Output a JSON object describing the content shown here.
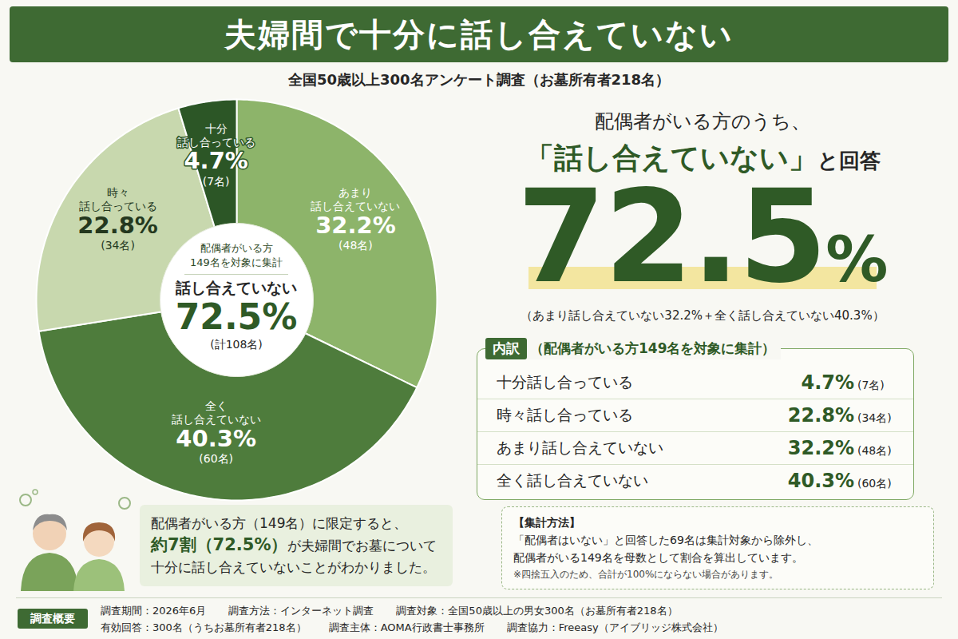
{
  "header": {
    "title": "夫婦間で十分に話し合えていない",
    "subtitle": "全国50歳以上300名アンケート調査（お墓所有者218名）"
  },
  "chart_data": {
    "type": "donut",
    "categories": [
      "あまり話し合えていない",
      "全く話し合えていない",
      "時々話し合っている",
      "十分話し合っている"
    ],
    "values": [
      32.2,
      40.3,
      22.8,
      4.7
    ],
    "value_labels": [
      "32.2%",
      "40.3%",
      "22.8%",
      "4.7%"
    ],
    "count_labels": [
      "(48名)",
      "(60名)",
      "(34名)",
      "(7名)"
    ],
    "colors": [
      "#8db46a",
      "#4e7c3c",
      "#c8d8ae",
      "#2c5626"
    ],
    "data_labels": true,
    "center": {
      "lines": [
        "配偶者がいる方",
        "149名を対象に集計"
      ],
      "label": "話し合えていない",
      "value_label": "72.5%",
      "count_label": "(計108名)"
    }
  },
  "headline": {
    "lead": "配偶者がいる方のうち、",
    "quote": "「話し合えていない」",
    "quote_suffix": "と回答",
    "value_label": "72.5%",
    "note": "（あまり話し合えていない32.2%＋全く話し合えていない40.3%）"
  },
  "breakdown": {
    "tag": "内訳",
    "title": "（配偶者がいる方149名を対象に集計）",
    "rows": [
      [
        "十分話し合っている",
        "4.7%",
        "(7名)"
      ],
      [
        "時々話し合っている",
        "22.8%",
        "(34名)"
      ],
      [
        "あまり話し合えていない",
        "32.2%",
        "(48名)"
      ],
      [
        "全く話し合えていない",
        "40.3%",
        "(60名)"
      ]
    ]
  },
  "summary": {
    "line1": "配偶者がいる方（149名）に限定すると、",
    "emphasis": "約7割（72.5%）",
    "line2": "が夫婦間でお墓について",
    "line3": "十分に話し合えていないことがわかりました。"
  },
  "method": {
    "title": "【集計方法】",
    "lines": [
      "「配偶者はいない」と回答した69名は集計対象から除外し、",
      "配偶者がいる149名を母数として割合を算出しています。"
    ],
    "footnote": "※四捨五入のため、合計が100%にならない場合があります。"
  },
  "overview": {
    "tag": "調査概要",
    "rows": [
      [
        "調査期間：2026年6月",
        "調査方法：インターネット調査",
        "調査対象：全国50歳以上の男女300名（お墓所有者218名）"
      ],
      [
        "有効回答：300名（うちお墓所有者218名）",
        "調査主体：AOMA行政書士事務所",
        "調査協力：Freeasy（アイブリッジ株式会社）"
      ]
    ]
  }
}
